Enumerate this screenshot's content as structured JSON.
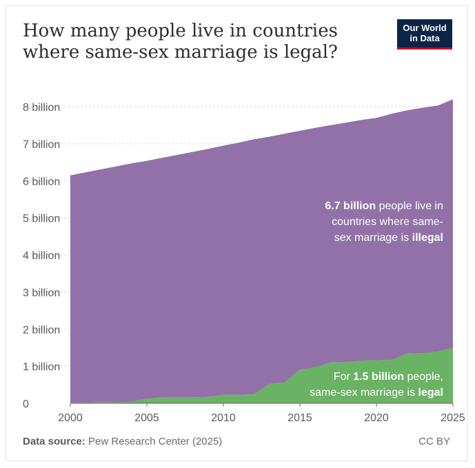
{
  "title": "How many people live in countries where same-sex marriage is legal?",
  "logo": {
    "line1": "Our World",
    "line2": "in Data"
  },
  "footer": {
    "source_label": "Data source:",
    "source_text": "Pew Research Center (2025)",
    "license": "CC BY"
  },
  "colors": {
    "illegal": "#9271a8",
    "legal": "#6ab264",
    "grid": "#d6d6d6",
    "axis": "#666666",
    "logo_bg": "#0b2447",
    "logo_accent": "#c8102e"
  },
  "chart_data": {
    "type": "area",
    "stacked": true,
    "x": [
      2000,
      2001,
      2002,
      2003,
      2004,
      2005,
      2006,
      2007,
      2008,
      2009,
      2010,
      2011,
      2012,
      2013,
      2014,
      2015,
      2016,
      2017,
      2018,
      2019,
      2020,
      2021,
      2022,
      2023,
      2024,
      2025
    ],
    "series": [
      {
        "key": "legal",
        "values": [
          0.016,
          0.016,
          0.026,
          0.026,
          0.04,
          0.12,
          0.16,
          0.16,
          0.16,
          0.17,
          0.23,
          0.23,
          0.24,
          0.52,
          0.56,
          0.9,
          0.97,
          1.1,
          1.1,
          1.15,
          1.16,
          1.17,
          1.34,
          1.35,
          1.39,
          1.5
        ]
      },
      {
        "key": "illegal",
        "values": [
          6.134,
          6.214,
          6.284,
          6.364,
          6.43,
          6.42,
          6.46,
          6.54,
          6.62,
          6.69,
          6.72,
          6.8,
          6.88,
          6.67,
          6.71,
          6.45,
          6.46,
          6.4,
          6.47,
          6.49,
          6.54,
          6.64,
          6.56,
          6.62,
          6.64,
          6.7
        ]
      }
    ],
    "y_ticks": [
      "0",
      "1 billion",
      "2 billion",
      "3 billion",
      "4 billion",
      "5 billion",
      "6 billion",
      "7 billion",
      "8 billion"
    ],
    "x_ticks": [
      "2000",
      "2005",
      "2010",
      "2015",
      "2020",
      "2025"
    ],
    "ylim": [
      0,
      8
    ],
    "xlim": [
      2000,
      2025
    ],
    "grid": true,
    "annotations": {
      "illegal": {
        "bold": "6.7 billion",
        "line1_rest": " people live in",
        "line2": "countries where same-",
        "line3_pre": "sex marriage is ",
        "line3_bold": "illegal"
      },
      "legal": {
        "line1_pre": "For ",
        "line1_bold": "1.5 billion",
        "line1_rest": " people,",
        "line2_pre": "same-sex marriage is ",
        "line2_bold": "legal"
      }
    }
  }
}
